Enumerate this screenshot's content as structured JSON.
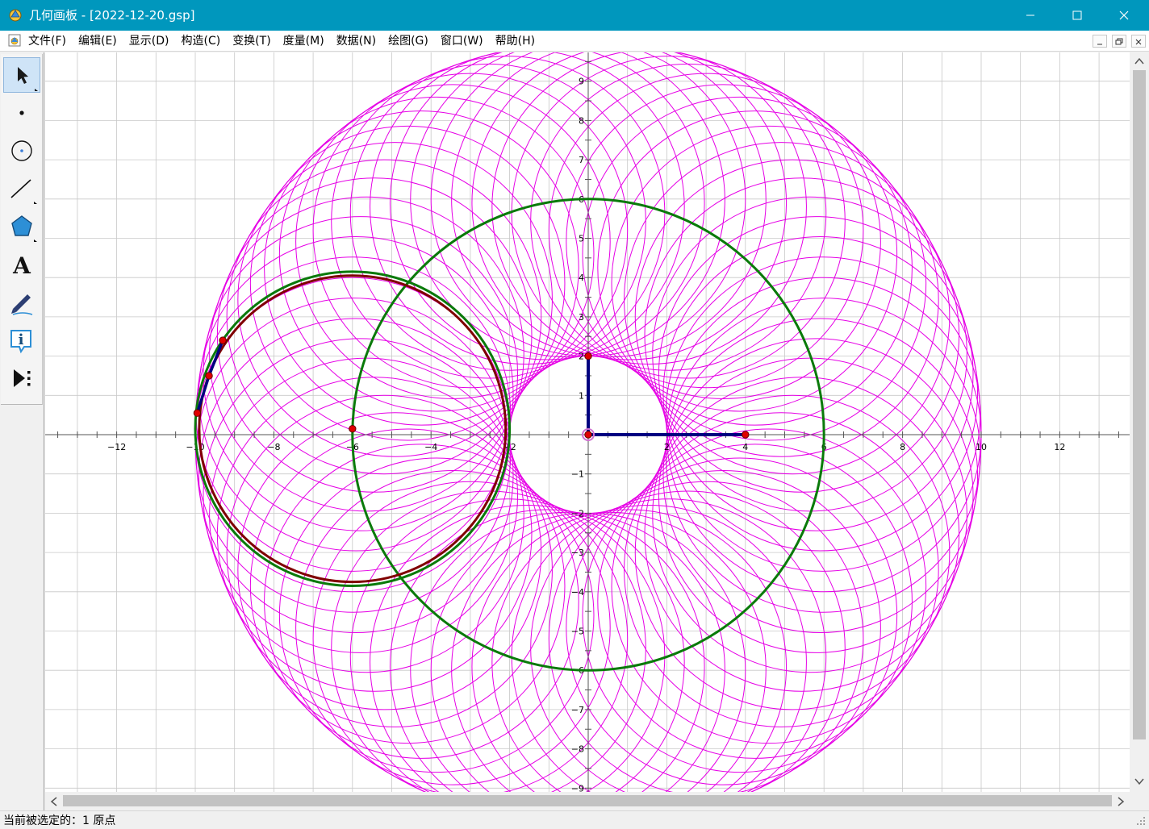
{
  "window": {
    "title": "几何画板 - [2022-12-20.gsp]"
  },
  "menu": [
    {
      "label": "文件(F)"
    },
    {
      "label": "编辑(E)"
    },
    {
      "label": "显示(D)"
    },
    {
      "label": "构造(C)"
    },
    {
      "label": "变换(T)"
    },
    {
      "label": "度量(M)"
    },
    {
      "label": "数据(N)"
    },
    {
      "label": "绘图(G)"
    },
    {
      "label": "窗口(W)"
    },
    {
      "label": "帮助(H)"
    }
  ],
  "toolbox": [
    {
      "name": "arrow-tool",
      "icon": "arrow-select-icon",
      "selected": true
    },
    {
      "name": "point-tool",
      "icon": "point-icon"
    },
    {
      "name": "compass-tool",
      "icon": "circle-icon"
    },
    {
      "name": "straightedge-tool",
      "icon": "line-icon"
    },
    {
      "name": "polygon-tool",
      "icon": "polygon-icon"
    },
    {
      "name": "text-tool",
      "icon": "text-a-icon",
      "label": "A"
    },
    {
      "name": "marker-tool",
      "icon": "marker-pen-icon"
    },
    {
      "name": "information-tool",
      "icon": "info-icon"
    },
    {
      "name": "custom-tool",
      "icon": "play-custom-icon"
    }
  ],
  "plot": {
    "x_ticks": [
      "−12",
      "−10",
      "−8",
      "−6",
      "−4",
      "−2",
      "2",
      "4",
      "6",
      "8",
      "10",
      "12"
    ],
    "y_ticks_pos": [
      "1",
      "2",
      "3",
      "4",
      "5",
      "6",
      "7",
      "8",
      "9"
    ],
    "y_ticks_neg": [
      "−1",
      "−2",
      "−3",
      "−4",
      "−5",
      "−6",
      "−7",
      "−8",
      "−9"
    ],
    "colors": {
      "spiro": "#e600e6",
      "circle_green": "#0a7a0a",
      "circle_darkred": "#800000",
      "segment": "#000080",
      "point": "#e00000",
      "grid": "#c8c8c8"
    },
    "big_circle": {
      "cx": 0,
      "cy": 0,
      "r": 6
    },
    "rolling_circle_outer": {
      "cx": -6,
      "cy": 0.15,
      "r": 4
    },
    "rolling_circle_inner": {
      "cx": -6,
      "cy": 0.15,
      "r": 3.9
    },
    "spirograph": {
      "outer_radius": 10,
      "inner_radius": 2,
      "count": 72
    }
  },
  "status": {
    "text": "当前被选定的：1 原点"
  }
}
